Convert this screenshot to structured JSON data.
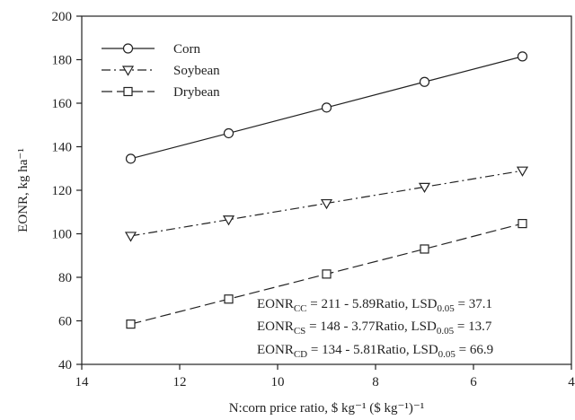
{
  "chart_data": {
    "type": "line",
    "xlabel": "N:corn price ratio, $ kg⁻¹ ($ kg⁻¹)⁻¹",
    "ylabel": "EONR, kg ha⁻¹",
    "xlim": [
      14,
      4
    ],
    "ylim": [
      40,
      200
    ],
    "x_reversed": true,
    "xticks": [
      14,
      12,
      10,
      8,
      6,
      4
    ],
    "yticks": [
      40,
      60,
      80,
      100,
      120,
      140,
      160,
      180,
      200
    ],
    "grid": false,
    "legend_position": "top-left",
    "x": [
      13,
      11,
      9,
      7,
      5
    ],
    "series": [
      {
        "name": "Corn",
        "values": [
          134.5,
          146.2,
          158.0,
          169.8,
          181.5
        ],
        "marker": "circle",
        "dash": "solid"
      },
      {
        "name": "Soybean",
        "values": [
          99.0,
          106.5,
          114.0,
          121.5,
          129.0
        ],
        "marker": "triangle-down",
        "dash": "dashdot"
      },
      {
        "name": "Drybean",
        "values": [
          58.5,
          70.0,
          81.5,
          93.0,
          104.7
        ],
        "marker": "square",
        "dash": "longdash"
      }
    ],
    "annotations": [
      {
        "main": "EONR",
        "sub": "CC",
        "rest": " = 211 - 5.89Ratio, LSD",
        "sub2": "0.05",
        "end": " = 37.1"
      },
      {
        "main": "EONR",
        "sub": "CS",
        "rest": " = 148 - 3.77Ratio, LSD",
        "sub2": "0.05",
        "end": " = 13.7"
      },
      {
        "main": "EONR",
        "sub": "CD",
        "rest": " = 134 - 5.81Ratio, LSD",
        "sub2": "0.05",
        "end": " = 66.9"
      }
    ]
  }
}
